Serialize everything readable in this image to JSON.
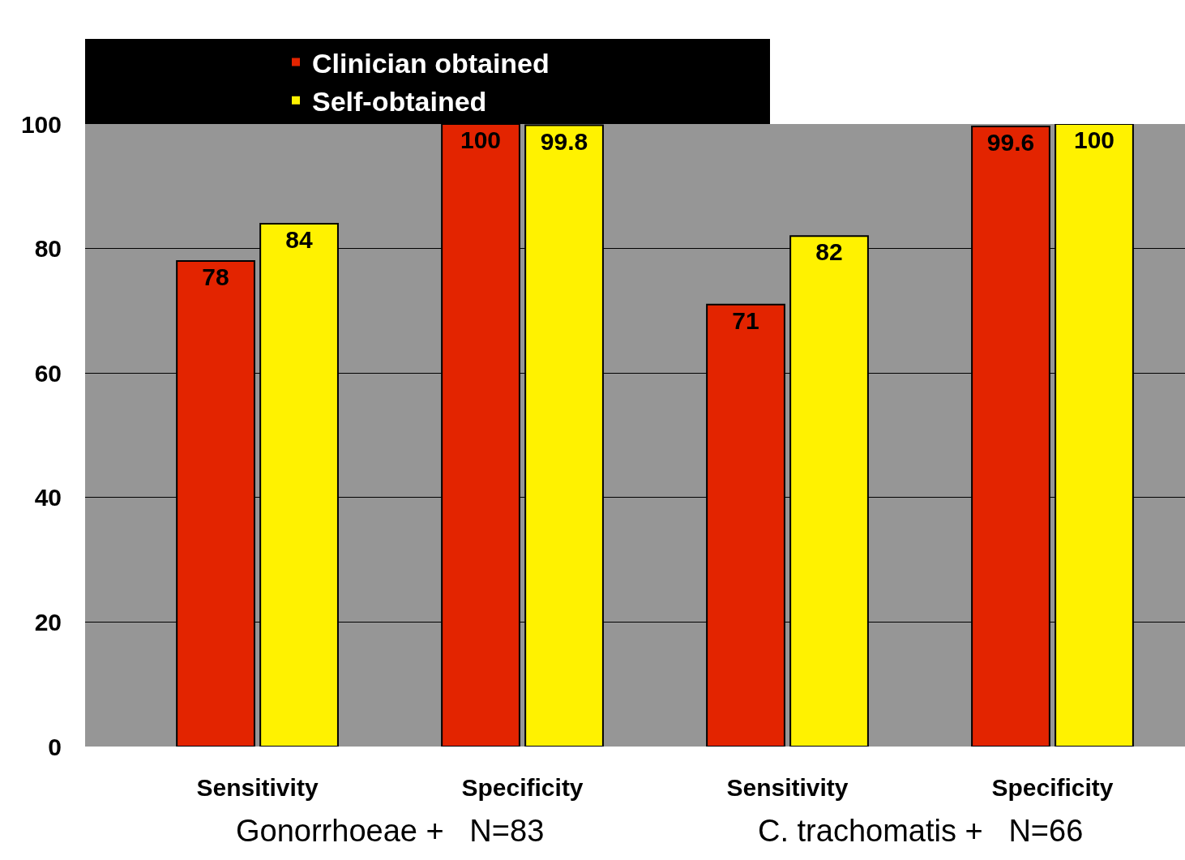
{
  "chart_data": {
    "type": "bar",
    "categories": [
      "Sensitivity",
      "Specificity",
      "Sensitivity",
      "Specificity"
    ],
    "series": [
      {
        "name": "Clinician obtained",
        "color": "#e32400",
        "values": [
          78,
          100,
          71,
          99.6
        ]
      },
      {
        "name": "Self-obtained",
        "color": "#fff200",
        "values": [
          84,
          99.8,
          82,
          100
        ]
      }
    ],
    "ylim": [
      0,
      100
    ],
    "yticks": [
      0,
      20,
      40,
      60,
      80,
      100
    ],
    "grid": "y",
    "legend": "top",
    "data_labels": true,
    "annotations": [
      {
        "text": "Gonorrhoeae +   N=83"
      },
      {
        "text": "C. trachomatis +   N=66"
      }
    ]
  }
}
